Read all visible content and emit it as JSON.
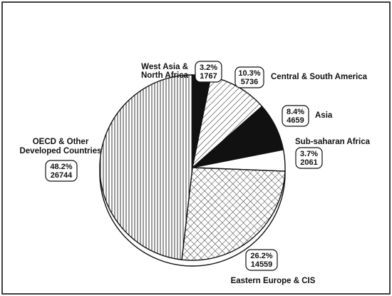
{
  "chart_data": {
    "type": "pie",
    "title": "",
    "slices": [
      {
        "label": "West Asia & North Africa",
        "percent": "3.2%",
        "value": 1767,
        "fill": "solid-black"
      },
      {
        "label": "Central & South America",
        "percent": "10.3%",
        "value": 5736,
        "fill": "diagonal-hatch"
      },
      {
        "label": "Asia",
        "percent": "8.4%",
        "value": 4659,
        "fill": "solid-black"
      },
      {
        "label": "Sub-saharan Africa",
        "percent": "3.7%",
        "value": 2061,
        "fill": "white"
      },
      {
        "label": "Eastern Europe & CIS",
        "percent": "26.2%",
        "value": 14559,
        "fill": "cross-hatch"
      },
      {
        "label": "OECD & Other Developed Countries",
        "percent": "48.2%",
        "value": 26744,
        "fill": "vertical-lines"
      }
    ],
    "colors": {
      "ink": "#111111",
      "background": "#ffffff"
    }
  }
}
